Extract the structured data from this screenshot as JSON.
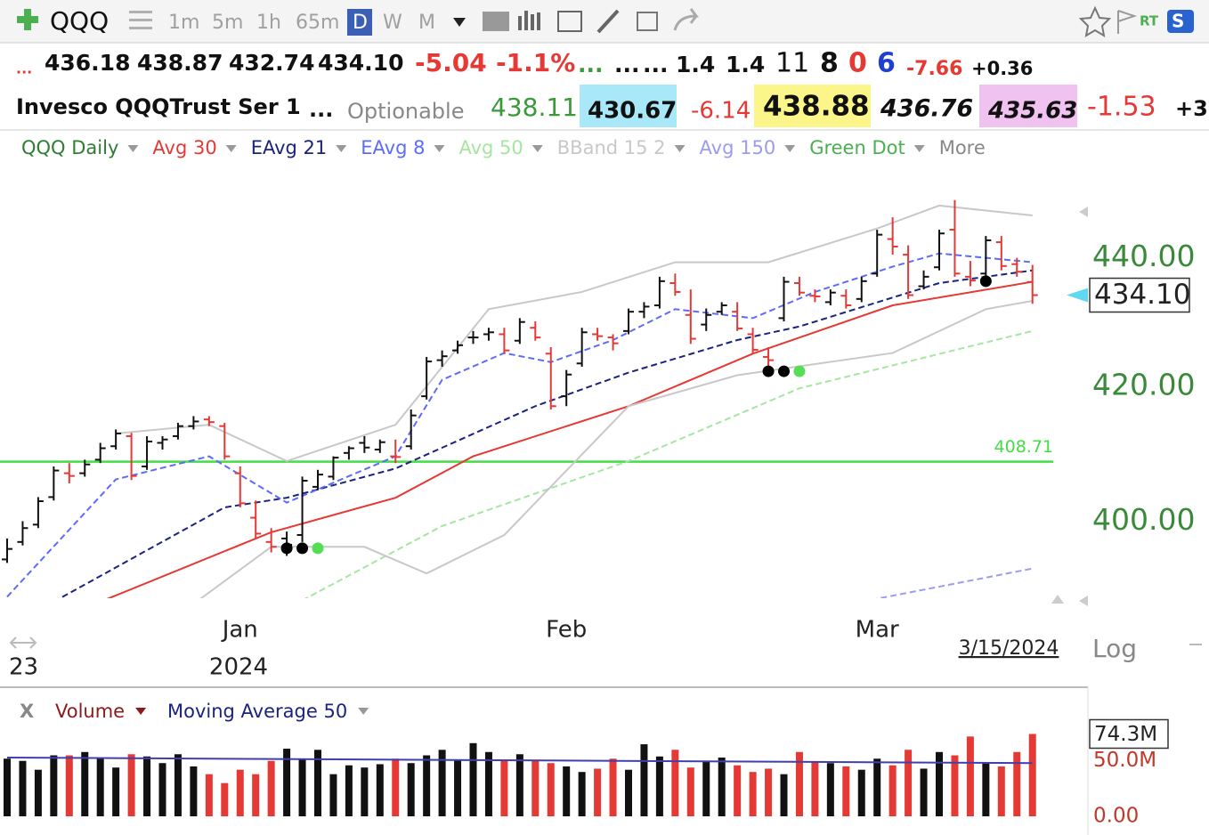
{
  "toolbar": {
    "symbol": "QQQ",
    "intervals": [
      "1m",
      "5m",
      "1h",
      "65m",
      "D",
      "W",
      "M"
    ],
    "active_interval": 4,
    "rt": "RT",
    "s": "S"
  },
  "quote": [
    "...",
    "436.18",
    "438.87",
    "432.74",
    "434.10",
    "-5.04",
    "-1.1%",
    "...",
    "...",
    "...",
    "1.4",
    "1.4",
    "11",
    "8",
    "0",
    "6",
    "-7.66",
    "+0.36"
  ],
  "name_row": [
    "Invesco QQQTrust Ser 1",
    "...",
    "Optionable",
    "438.11",
    "430.67",
    "-6.14",
    "438.88",
    "436.76",
    "435.63",
    "-1.53",
    "+3"
  ],
  "chart_data": {
    "type": "ohlc",
    "name": "QQQ Daily",
    "log_scale": true,
    "ylim": [
      389,
      451
    ],
    "yticks": [
      {
        "value": 400,
        "label": "400.00"
      },
      {
        "value": 420,
        "label": "420.00"
      },
      {
        "value": 440,
        "label": "440.00"
      }
    ],
    "x_ticks": [
      {
        "value": 15,
        "label": "Jan"
      },
      {
        "value": 36,
        "label": "Feb"
      },
      {
        "value": 56,
        "label": "Mar"
      }
    ],
    "year_label": "2024",
    "prev_year_label": "23",
    "date_label": "3/15/2024",
    "scale_label": "Log",
    "more": "More",
    "last_label": "434.10",
    "up_color": "#111111",
    "down_color": "#e53935",
    "open": [
      394.5,
      397.0,
      399.5,
      403.5,
      407.0,
      407.0,
      409.0,
      411.0,
      412.5,
      408.0,
      411.5,
      412.5,
      414.0,
      415.0,
      414.0,
      407.0,
      400.5,
      397.0,
      397.5,
      398.0,
      405.0,
      406.5,
      410.0,
      411.5,
      410.5,
      409.5,
      411.0,
      418.5,
      424.0,
      425.5,
      427.5,
      428.0,
      428.0,
      427.0,
      429.0,
      425.0,
      418.5,
      423.5,
      428.0,
      427.5,
      428.5,
      431.5,
      432.5,
      436.0,
      431.0,
      429.5,
      431.5,
      431.5,
      428.0,
      424.5,
      430.5,
      436.0,
      434.0,
      433.0,
      434.0,
      433.5,
      437.5,
      443.0,
      440.5,
      435.5,
      438.5,
      444.5,
      437.0,
      437.5,
      442.5,
      439.0,
      436.18
    ],
    "high": [
      397.5,
      400.0,
      403.5,
      408.0,
      408.5,
      409.0,
      411.5,
      413.5,
      413.0,
      412.5,
      412.5,
      414.5,
      415.5,
      415.5,
      414.5,
      408.0,
      403.0,
      399.0,
      398.5,
      406.5,
      407.5,
      409.5,
      411.0,
      412.5,
      412.0,
      412.0,
      416.5,
      424.5,
      425.5,
      427.0,
      428.5,
      429.0,
      429.0,
      430.5,
      430.0,
      426.0,
      422.5,
      429.0,
      429.0,
      428.0,
      432.0,
      433.0,
      437.0,
      437.5,
      435.0,
      432.0,
      433.0,
      433.0,
      429.0,
      426.0,
      437.0,
      437.0,
      435.0,
      435.0,
      435.0,
      437.0,
      444.5,
      446.5,
      442.0,
      438.0,
      444.5,
      449.3,
      439.5,
      443.5,
      443.5,
      440.0,
      438.87
    ],
    "low": [
      394.0,
      396.5,
      399.0,
      403.0,
      405.5,
      406.5,
      408.5,
      410.5,
      406.0,
      407.5,
      410.5,
      412.0,
      413.5,
      414.0,
      409.0,
      402.0,
      397.5,
      395.5,
      395.0,
      397.0,
      404.5,
      406.0,
      409.0,
      410.0,
      410.0,
      408.5,
      410.5,
      418.0,
      423.0,
      425.0,
      426.5,
      427.0,
      425.0,
      426.5,
      427.0,
      416.5,
      417.0,
      423.0,
      427.0,
      425.5,
      428.0,
      430.5,
      432.0,
      434.0,
      426.5,
      428.5,
      431.0,
      428.5,
      425.0,
      423.0,
      430.0,
      434.0,
      433.0,
      432.5,
      432.0,
      433.0,
      437.0,
      440.5,
      433.5,
      435.0,
      438.0,
      437.0,
      435.5,
      437.0,
      438.0,
      437.0,
      432.74
    ],
    "close": [
      396.0,
      399.0,
      402.9,
      407.4,
      406.6,
      408.3,
      410.7,
      412.9,
      406.6,
      411.7,
      412.0,
      414.0,
      414.7,
      414.6,
      409.5,
      402.6,
      398.2,
      396.3,
      396.6,
      405.9,
      406.8,
      409.3,
      410.7,
      410.8,
      411.6,
      409.4,
      415.6,
      423.8,
      424.6,
      426.3,
      427.5,
      428.3,
      425.5,
      429.9,
      427.5,
      417.0,
      421.8,
      428.3,
      427.7,
      426.6,
      431.5,
      432.3,
      436.3,
      434.6,
      427.3,
      431.0,
      432.5,
      428.9,
      425.6,
      424.0,
      436.2,
      434.5,
      433.9,
      434.5,
      432.5,
      436.3,
      443.7,
      441.8,
      434.1,
      437.0,
      443.9,
      437.5,
      436.4,
      442.8,
      438.7,
      437.8,
      434.1
    ],
    "indicators": [
      {
        "name": "Avg 30",
        "color": "#e53935",
        "dash": false,
        "lines": [
          {
            "index": [
              6,
              17,
              25,
              30,
              40,
              48,
              57,
              66
            ],
            "values": [
              388.5,
              398.4,
              403.4,
              409.5,
              417.0,
              425.0,
              432.5,
              436.2
            ]
          }
        ]
      },
      {
        "name": "EAvg 21",
        "color": "#1a237e",
        "dash": true,
        "lines": [
          {
            "index": [
              3,
              14,
              18,
              25,
              34,
              40,
              47,
              51,
              60,
              66
            ],
            "values": [
              388.5,
              402.0,
              403.4,
              407.7,
              417.0,
              422.1,
              427.1,
              429.2,
              436.0,
              438.0
            ]
          }
        ]
      },
      {
        "name": "EAvg 8",
        "color": "#5c6bff",
        "dash": true,
        "lines": [
          {
            "index": [
              0,
              7,
              13,
              18,
              25,
              28,
              32,
              35,
              39,
              43,
              48,
              52,
              57,
              60,
              66
            ],
            "values": [
              389.2,
              406.1,
              409.5,
              402.7,
              409.5,
              421.0,
              425.1,
              423.7,
              427.1,
              431.9,
              430.5,
              434.6,
              438.6,
              440.7,
              439.3
            ]
          }
        ]
      },
      {
        "name": "Avg 50",
        "color": "#a5e6a0",
        "dash": true,
        "lines": [
          {
            "index": [
              19,
              28,
              40,
              51,
              66
            ],
            "values": [
              388.7,
              399.3,
              408.8,
              419.7,
              428.5
            ]
          }
        ]
      },
      {
        "name": "BBand 15 2",
        "color": "#c8c8c8",
        "dash": false,
        "lines": [
          {
            "index": [
              7,
              13,
              18,
              25,
              31,
              37,
              43,
              49,
              56,
              60,
              66
            ],
            "values": [
              412.9,
              414.2,
              408.8,
              414.2,
              431.9,
              434.6,
              439.3,
              439.3,
              444.7,
              448.4,
              446.8
            ]
          },
          {
            "index": [
              12,
              17,
              23,
              27,
              32,
              40,
              47,
              57,
              63,
              66
            ],
            "values": [
              388.2,
              396.3,
              396.3,
              392.5,
              398.0,
              417.0,
              421.7,
              425.1,
              431.9,
              433.2
            ]
          }
        ]
      },
      {
        "name": "Avg 150",
        "color": "#9a9cf0",
        "dash": true,
        "lines": [
          {
            "index": [
              55,
              66
            ],
            "values": [
              388.5,
              393.2
            ]
          }
        ]
      }
    ],
    "signals": {
      "name": "Green Dot",
      "color": "#4caf50",
      "points": [
        {
          "index": 18,
          "price": 396.1,
          "color": "#000000"
        },
        {
          "index": 19,
          "price": 396.1,
          "color": "#000000"
        },
        {
          "index": 20,
          "price": 396.1,
          "color": "#55dd55"
        },
        {
          "index": 49,
          "price": 422.3,
          "color": "#000000"
        },
        {
          "index": 50,
          "price": 422.3,
          "color": "#000000"
        },
        {
          "index": 51,
          "price": 422.3,
          "color": "#55dd55"
        },
        {
          "index": 63,
          "price": 436.3,
          "color": "#000000"
        }
      ]
    },
    "hline": {
      "value": 408.71,
      "label": "408.71",
      "color": "#44dd44"
    },
    "volume": {
      "close_label": "X",
      "name": "Volume",
      "ma_name": "Moving Average 50",
      "ylim": [
        0,
        102
      ],
      "yticks": [
        {
          "value": 0,
          "label": "0.00"
        },
        {
          "value": 50,
          "label": "50.0M"
        }
      ],
      "last_label": "74.3M",
      "values": [
        52,
        50,
        42,
        55,
        55,
        58,
        52,
        44,
        56,
        54,
        48,
        56,
        45,
        38,
        30,
        42,
        38,
        50,
        61,
        52,
        60,
        38,
        46,
        44,
        47,
        52,
        48,
        55,
        60,
        51,
        66,
        58,
        51,
        56,
        50,
        48,
        45,
        40,
        43,
        52,
        42,
        65,
        54,
        60,
        44,
        49,
        53,
        46,
        40,
        43,
        38,
        58,
        49,
        48,
        45,
        42,
        52,
        46,
        60,
        43,
        58,
        55,
        72,
        49,
        45,
        58,
        74.3
      ],
      "ma": {
        "color": "#3f3fb0",
        "index": [
          0,
          66
        ],
        "values": [
          53,
          48
        ]
      }
    }
  }
}
